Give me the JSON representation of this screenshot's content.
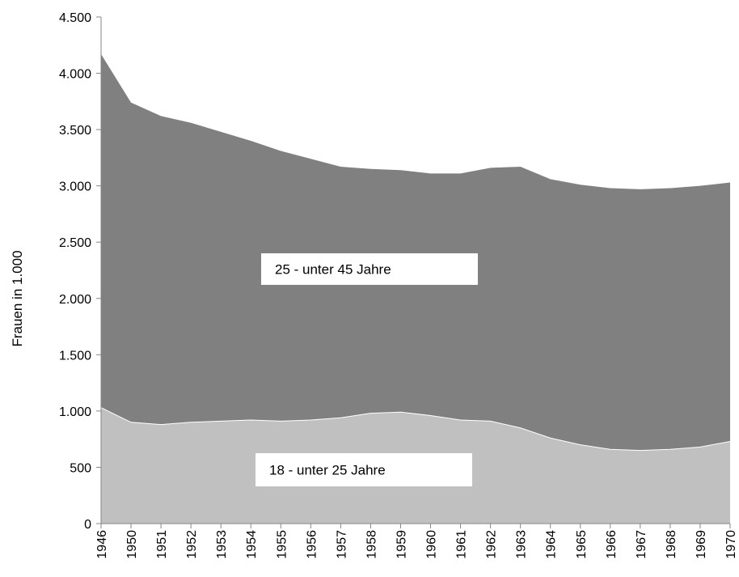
{
  "chart_data": {
    "type": "area",
    "stacked": true,
    "title": "",
    "xlabel": "",
    "ylabel": "Frauen in 1.000",
    "ylim": [
      0,
      4500
    ],
    "ytick_values": [
      0,
      500,
      1000,
      1500,
      2000,
      2500,
      3000,
      3500,
      4000,
      4500
    ],
    "ytick_labels": [
      "0",
      "500",
      "1.000",
      "1.500",
      "2.000",
      "2.500",
      "3.000",
      "3.500",
      "4.000",
      "4.500"
    ],
    "grid": false,
    "legend": "none",
    "x": [
      "1946",
      "1950",
      "1951",
      "1952",
      "1953",
      "1954",
      "1955",
      "1956",
      "1957",
      "1958",
      "1959",
      "1960",
      "1961",
      "1962",
      "1963",
      "1964",
      "1965",
      "1966",
      "1967",
      "1968",
      "1969",
      "1970"
    ],
    "series": [
      {
        "name": "18 - unter 25 Jahre",
        "color": "#c0c0c0",
        "values": [
          1030,
          900,
          880,
          900,
          910,
          920,
          910,
          920,
          940,
          980,
          990,
          960,
          920,
          910,
          850,
          760,
          700,
          660,
          650,
          660,
          680,
          730
        ]
      },
      {
        "name": "25 - unter 45 Jahre",
        "color": "#808080",
        "values": [
          3140,
          2840,
          2740,
          2660,
          2570,
          2480,
          2400,
          2320,
          2230,
          2170,
          2150,
          2150,
          2190,
          2250,
          2320,
          2300,
          2310,
          2320,
          2320,
          2320,
          2320,
          2300
        ]
      }
    ]
  }
}
